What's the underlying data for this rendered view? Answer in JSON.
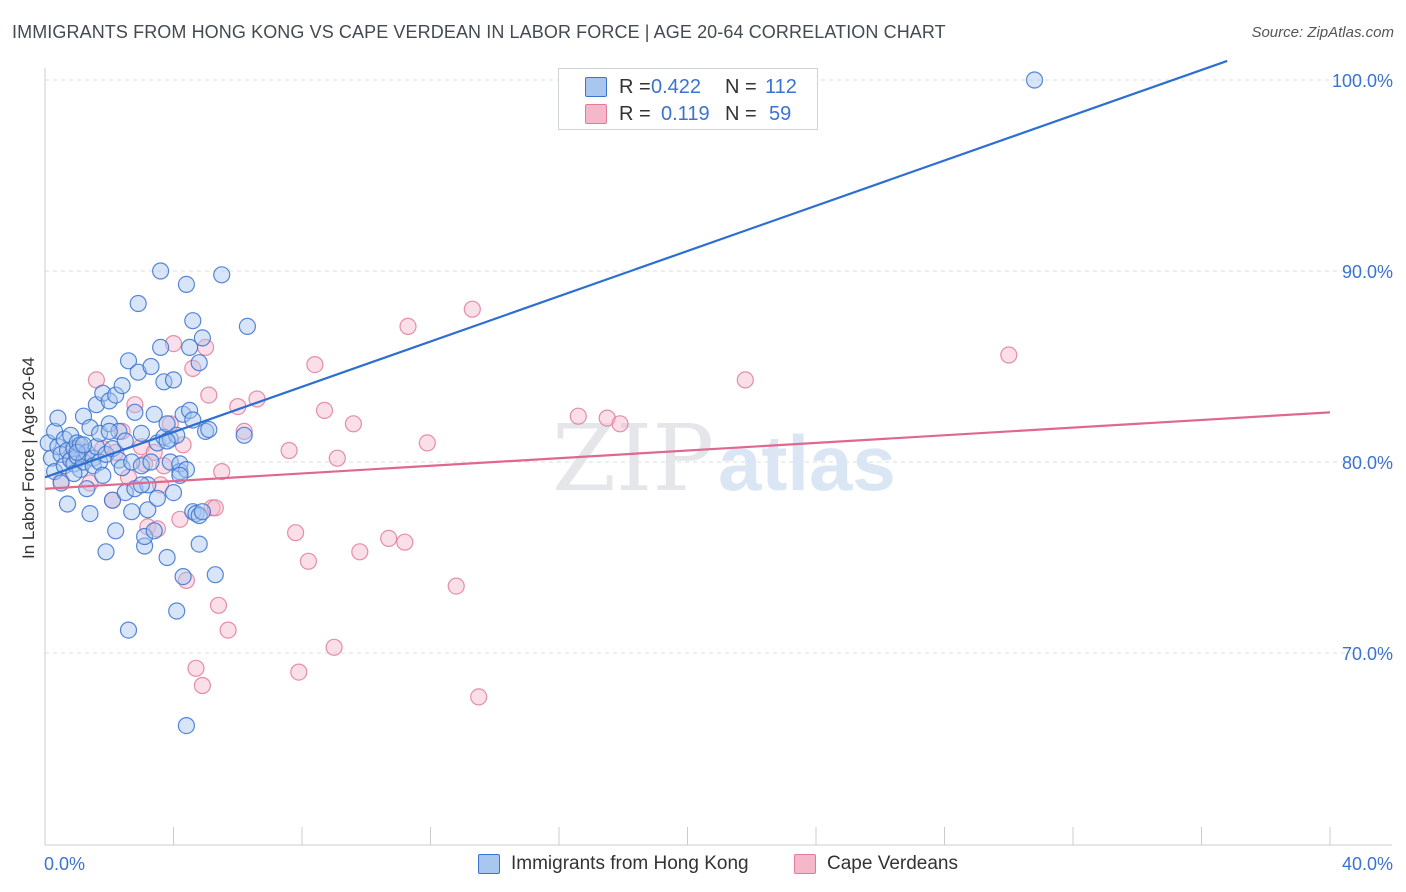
{
  "title": "IMMIGRANTS FROM HONG KONG VS CAPE VERDEAN IN LABOR FORCE | AGE 20-64 CORRELATION CHART",
  "source": "Source: ZipAtlas.com",
  "watermark": {
    "zip": "ZIP",
    "atlas": "atlas"
  },
  "colors": {
    "blue_fill": "#a9c6ef",
    "blue_stroke": "#3a73d0",
    "blue_line": "#2d6fd0",
    "pink_fill": "#f5b8cb",
    "pink_stroke": "#e07b9c",
    "pink_line": "#e0688f",
    "grid": "#d9dde2",
    "axis_text": "#3a73d0"
  },
  "legend_top": {
    "rows": [
      {
        "series": "blue",
        "r_label": "R =",
        "r_value": "0.422",
        "n_label": "N =",
        "n_value": "112"
      },
      {
        "series": "pink",
        "r_label": "R =",
        "r_value": "0.119",
        "n_label": "N =",
        "n_value": "59"
      }
    ]
  },
  "chart_data": {
    "type": "scatter",
    "title": "IMMIGRANTS FROM HONG KONG VS CAPE VERDEAN IN LABOR FORCE | AGE 20-64 CORRELATION CHART",
    "xlabel": "",
    "ylabel": "In Labor Force | Age 20-64",
    "xlim": [
      0,
      40
    ],
    "ylim": [
      61.5,
      101
    ],
    "x_tick_labels": [
      {
        "value": 0,
        "label": "0.0%"
      },
      {
        "value": 40,
        "label": "40.0%"
      }
    ],
    "y_tick_labels": [
      {
        "value": 100,
        "label": "100.0%"
      },
      {
        "value": 90,
        "label": "90.0%"
      },
      {
        "value": 80,
        "label": "80.0%"
      },
      {
        "value": 70,
        "label": "70.0%"
      }
    ],
    "x_minor_ticks": [
      4,
      8,
      12,
      16,
      20,
      24,
      28,
      32,
      36,
      40
    ],
    "grid": true,
    "legend_position": "bottom-center",
    "series": [
      {
        "name": "Immigrants from Hong Kong",
        "color": "blue",
        "R": 0.422,
        "N": 112,
        "trend": {
          "x": [
            0,
            36.8
          ],
          "y": [
            79.2,
            101.0
          ]
        },
        "points": [
          [
            0.1,
            81.0
          ],
          [
            0.2,
            80.2
          ],
          [
            0.3,
            79.5
          ],
          [
            0.3,
            81.6
          ],
          [
            0.4,
            82.3
          ],
          [
            0.4,
            80.8
          ],
          [
            0.5,
            78.9
          ],
          [
            0.5,
            80.4
          ],
          [
            0.6,
            81.2
          ],
          [
            0.6,
            79.8
          ],
          [
            0.7,
            80.6
          ],
          [
            0.7,
            77.8
          ],
          [
            0.8,
            80.1
          ],
          [
            0.8,
            81.4
          ],
          [
            0.9,
            79.9
          ],
          [
            0.9,
            80.7
          ],
          [
            1.0,
            80.3
          ],
          [
            1.0,
            81.0
          ],
          [
            1.1,
            79.6
          ],
          [
            1.1,
            80.9
          ],
          [
            1.2,
            80.0
          ],
          [
            1.2,
            82.4
          ],
          [
            1.3,
            78.6
          ],
          [
            1.3,
            80.5
          ],
          [
            1.4,
            77.3
          ],
          [
            1.4,
            81.8
          ],
          [
            1.5,
            80.2
          ],
          [
            1.5,
            79.8
          ],
          [
            1.6,
            83.0
          ],
          [
            1.6,
            80.8
          ],
          [
            1.7,
            81.5
          ],
          [
            1.7,
            80.0
          ],
          [
            1.8,
            83.6
          ],
          [
            1.8,
            79.3
          ],
          [
            1.9,
            75.3
          ],
          [
            1.9,
            80.4
          ],
          [
            2.0,
            83.2
          ],
          [
            2.0,
            82.0
          ],
          [
            2.1,
            78.0
          ],
          [
            2.1,
            80.7
          ],
          [
            2.2,
            76.4
          ],
          [
            2.2,
            83.5
          ],
          [
            2.3,
            80.1
          ],
          [
            2.3,
            81.6
          ],
          [
            2.4,
            84.0
          ],
          [
            2.4,
            79.7
          ],
          [
            2.5,
            78.4
          ],
          [
            2.5,
            81.1
          ],
          [
            2.6,
            71.2
          ],
          [
            2.6,
            85.3
          ],
          [
            2.7,
            80.0
          ],
          [
            2.7,
            77.4
          ],
          [
            2.8,
            82.6
          ],
          [
            2.8,
            78.6
          ],
          [
            2.9,
            88.3
          ],
          [
            2.9,
            84.7
          ],
          [
            3.0,
            79.8
          ],
          [
            3.0,
            81.5
          ],
          [
            3.1,
            75.6
          ],
          [
            3.1,
            76.1
          ],
          [
            3.2,
            78.8
          ],
          [
            3.2,
            77.5
          ],
          [
            3.3,
            80.0
          ],
          [
            3.3,
            85.0
          ],
          [
            3.4,
            76.4
          ],
          [
            3.4,
            82.5
          ],
          [
            3.5,
            78.1
          ],
          [
            3.5,
            81.0
          ],
          [
            3.6,
            90.0
          ],
          [
            3.6,
            86.0
          ],
          [
            3.7,
            84.2
          ],
          [
            3.7,
            81.3
          ],
          [
            3.8,
            75.0
          ],
          [
            3.8,
            82.0
          ],
          [
            3.9,
            81.2
          ],
          [
            3.9,
            80.0
          ],
          [
            4.0,
            84.3
          ],
          [
            4.0,
            78.4
          ],
          [
            4.1,
            81.4
          ],
          [
            4.1,
            72.2
          ],
          [
            4.2,
            79.5
          ],
          [
            4.2,
            79.9
          ],
          [
            4.3,
            82.5
          ],
          [
            4.3,
            74.0
          ],
          [
            4.4,
            89.3
          ],
          [
            4.4,
            79.6
          ],
          [
            4.5,
            86.0
          ],
          [
            4.6,
            87.4
          ],
          [
            4.6,
            77.4
          ],
          [
            4.7,
            77.3
          ],
          [
            4.8,
            77.2
          ],
          [
            4.9,
            77.4
          ],
          [
            4.4,
            66.2
          ],
          [
            4.5,
            82.7
          ],
          [
            4.6,
            82.2
          ],
          [
            4.8,
            75.7
          ],
          [
            4.9,
            86.5
          ],
          [
            4.8,
            85.2
          ],
          [
            5.0,
            81.6
          ],
          [
            5.1,
            81.7
          ],
          [
            5.3,
            74.1
          ],
          [
            5.5,
            89.8
          ],
          [
            6.3,
            87.1
          ],
          [
            6.2,
            81.4
          ],
          [
            1.0,
            80.5
          ],
          [
            1.2,
            80.9
          ],
          [
            0.9,
            79.4
          ],
          [
            2.0,
            81.6
          ],
          [
            3.0,
            78.8
          ],
          [
            3.8,
            81.1
          ],
          [
            4.2,
            79.3
          ],
          [
            30.8,
            100.0
          ]
        ]
      },
      {
        "name": "Cape Verdeans",
        "color": "pink",
        "R": 0.119,
        "N": 59,
        "trend": {
          "x": [
            0,
            40
          ],
          "y": [
            78.6,
            82.6
          ]
        },
        "points": [
          [
            0.5,
            79.0
          ],
          [
            0.8,
            80.2
          ],
          [
            1.0,
            80.7
          ],
          [
            1.2,
            80.4
          ],
          [
            1.4,
            78.9
          ],
          [
            1.6,
            84.3
          ],
          [
            1.8,
            80.7
          ],
          [
            2.1,
            78.0
          ],
          [
            2.4,
            81.6
          ],
          [
            2.6,
            79.2
          ],
          [
            2.8,
            83.0
          ],
          [
            3.0,
            80.8
          ],
          [
            3.2,
            76.6
          ],
          [
            3.4,
            80.5
          ],
          [
            3.5,
            76.5
          ],
          [
            3.6,
            78.8
          ],
          [
            3.7,
            79.8
          ],
          [
            3.9,
            82.0
          ],
          [
            4.0,
            86.2
          ],
          [
            4.2,
            77.0
          ],
          [
            4.3,
            80.9
          ],
          [
            4.4,
            73.8
          ],
          [
            4.6,
            84.9
          ],
          [
            4.7,
            69.2
          ],
          [
            4.9,
            68.3
          ],
          [
            5.0,
            86.0
          ],
          [
            5.1,
            83.5
          ],
          [
            5.2,
            77.6
          ],
          [
            5.3,
            77.6
          ],
          [
            5.4,
            72.5
          ],
          [
            5.5,
            79.5
          ],
          [
            5.7,
            71.2
          ],
          [
            6.0,
            82.9
          ],
          [
            6.2,
            81.6
          ],
          [
            6.6,
            83.3
          ],
          [
            7.6,
            80.6
          ],
          [
            7.8,
            76.3
          ],
          [
            7.9,
            69.0
          ],
          [
            8.2,
            74.8
          ],
          [
            8.4,
            85.1
          ],
          [
            8.7,
            82.7
          ],
          [
            9.0,
            70.3
          ],
          [
            9.1,
            80.2
          ],
          [
            9.6,
            82.0
          ],
          [
            9.8,
            75.3
          ],
          [
            10.7,
            76.0
          ],
          [
            11.2,
            75.8
          ],
          [
            11.3,
            87.1
          ],
          [
            11.9,
            81.0
          ],
          [
            12.8,
            73.5
          ],
          [
            13.3,
            88.0
          ],
          [
            13.5,
            67.7
          ],
          [
            16.6,
            82.4
          ],
          [
            17.5,
            82.3
          ],
          [
            17.9,
            82.0
          ],
          [
            21.8,
            84.3
          ],
          [
            30.0,
            85.6
          ],
          [
            2.2,
            80.5
          ],
          [
            3.1,
            79.9
          ]
        ]
      }
    ]
  },
  "legend_bottom": [
    {
      "series": "blue",
      "label": "Immigrants from Hong Kong"
    },
    {
      "series": "pink",
      "label": "Cape Verdeans"
    }
  ]
}
